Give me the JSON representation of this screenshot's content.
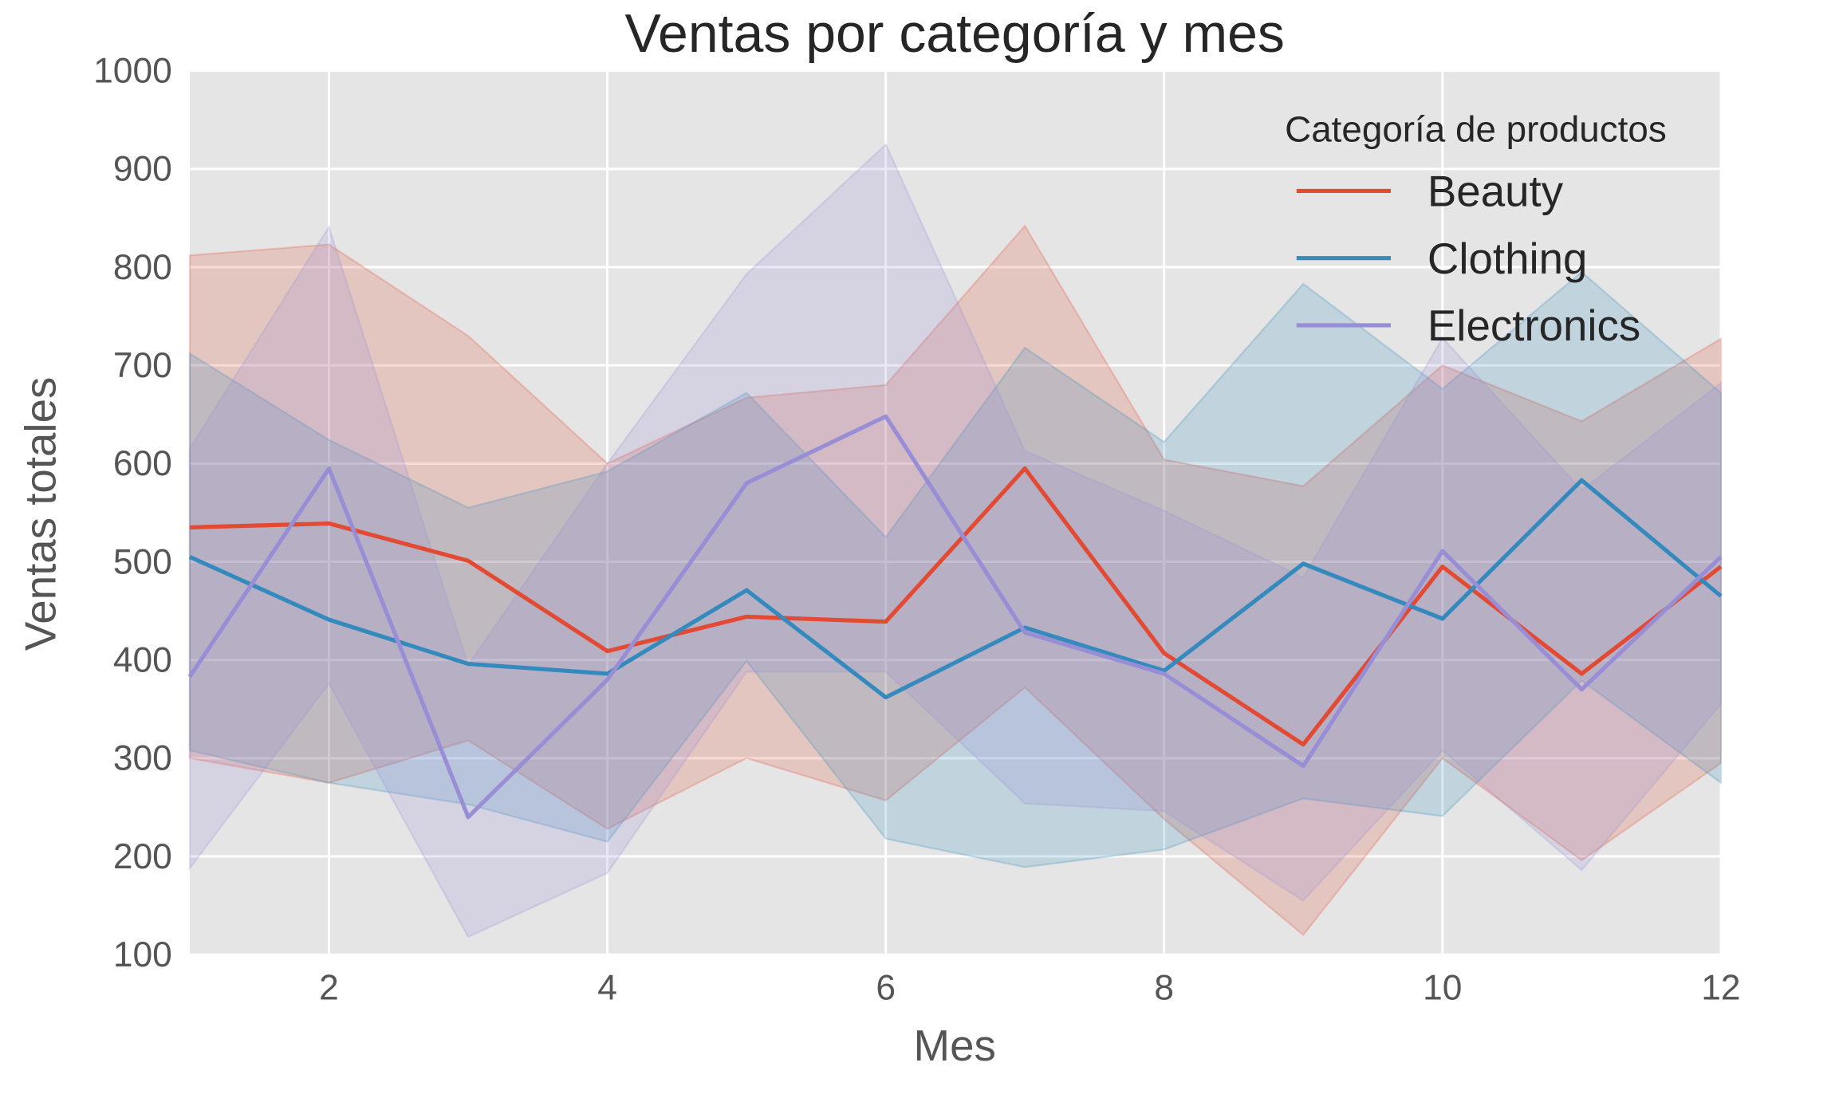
{
  "chart_data": {
    "type": "line",
    "title": "Ventas por categoría y mes",
    "xlabel": "Mes",
    "ylabel": "Ventas totales",
    "xlim": [
      1,
      12
    ],
    "ylim": [
      100,
      1000
    ],
    "xticks": [
      2,
      4,
      6,
      8,
      10,
      12
    ],
    "yticks": [
      100,
      200,
      300,
      400,
      500,
      600,
      700,
      800,
      900,
      1000
    ],
    "grid": true,
    "legend": {
      "title": "Categoría de productos",
      "placement": "top-right"
    },
    "x": [
      1,
      2,
      3,
      4,
      5,
      6,
      7,
      8,
      9,
      10,
      11,
      12
    ],
    "series": [
      {
        "name": "Beauty",
        "color": "#E24A33",
        "values": [
          535,
          539,
          501,
          409,
          444,
          439,
          595,
          407,
          314,
          495,
          386,
          495
        ],
        "ci_lower": [
          300,
          275,
          318,
          228,
          300,
          257,
          372,
          238,
          120,
          300,
          196,
          295
        ],
        "ci_upper": [
          812,
          823,
          730,
          600,
          667,
          680,
          842,
          604,
          577,
          700,
          643,
          727
        ]
      },
      {
        "name": "Clothing",
        "color": "#348ABD",
        "values": [
          505,
          441,
          396,
          386,
          471,
          362,
          433,
          389,
          498,
          442,
          583,
          465
        ],
        "ci_lower": [
          308,
          275,
          253,
          215,
          399,
          218,
          189,
          207,
          259,
          241,
          379,
          275
        ],
        "ci_upper": [
          712,
          624,
          555,
          592,
          672,
          525,
          718,
          622,
          783,
          676,
          795,
          672
        ]
      },
      {
        "name": "Electronics",
        "color": "#988ED5",
        "values": [
          383,
          595,
          240,
          380,
          580,
          648,
          428,
          386,
          292,
          511,
          370,
          505
        ],
        "ci_lower": [
          188,
          376,
          118,
          183,
          388,
          388,
          254,
          246,
          155,
          308,
          186,
          355
        ],
        "ci_upper": [
          615,
          841,
          395,
          600,
          793,
          925,
          613,
          552,
          484,
          728,
          573,
          682
        ]
      }
    ]
  }
}
